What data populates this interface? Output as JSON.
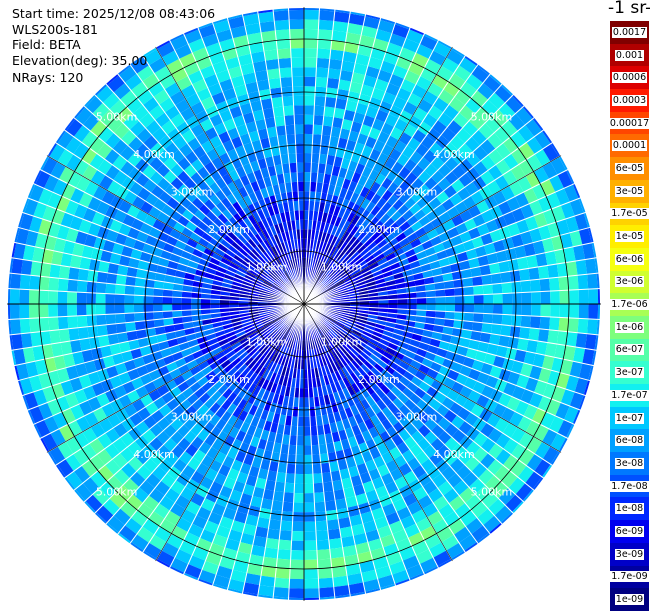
{
  "info": {
    "start_time": "Start time: 2025/12/08 08:43:06",
    "device": "WLS200s-181",
    "field": "Field: BETA",
    "elevation": "Elevation(deg): 35.00",
    "nrays": "NRays: 120"
  },
  "colorbar": {
    "title": "-1 sr-",
    "levels": [
      "0.0017",
      "0.001",
      "0.0006",
      "0.0003",
      "0.00017",
      "0.0001",
      "6e-05",
      "3e-05",
      "1.7e-05",
      "1e-05",
      "6e-06",
      "3e-06",
      "1.7e-06",
      "1e-06",
      "6e-07",
      "3e-07",
      "1.7e-07",
      "1e-07",
      "6e-08",
      "3e-08",
      "1.7e-08",
      "1e-08",
      "6e-09",
      "3e-09",
      "1.7e-09",
      "1e-09"
    ],
    "colors": [
      "#800000",
      "#b00000",
      "#dd0000",
      "#ff1a00",
      "#ff4600",
      "#ff6a00",
      "#ff8f00",
      "#ffb000",
      "#ffd200",
      "#ffee00",
      "#f5ff10",
      "#d0ff30",
      "#a8ff55",
      "#7dff7d",
      "#55ffa8",
      "#35ffd0",
      "#12f0f0",
      "#00c8ff",
      "#00a0ff",
      "#0078ff",
      "#0050ff",
      "#0028ff",
      "#0000f0",
      "#0000c8",
      "#0000a0",
      "#000080"
    ]
  },
  "chart_data": {
    "type": "heatmap",
    "projection": "polar-ppi",
    "field": "BETA",
    "n_rays": 120,
    "range_rings_km": [
      1,
      2,
      3,
      4,
      5
    ],
    "range_labels": [
      "1.00km",
      "2.00km",
      "3.00km",
      "4.00km",
      "5.00km"
    ],
    "max_range_km": 5.6,
    "value_profile_by_range_km": [
      {
        "range_km": 0.5,
        "beta": 3e-09
      },
      {
        "range_km": 1.5,
        "beta": 6e-09
      },
      {
        "range_km": 2.5,
        "beta": 3e-08
      },
      {
        "range_km": 3.5,
        "beta": 6e-08
      },
      {
        "range_km": 4.5,
        "beta": 1e-07
      },
      {
        "range_km": 5.0,
        "beta": 6e-07
      },
      {
        "range_km": 5.5,
        "beta": 3e-08
      }
    ],
    "colorscale": "jet",
    "color_range": [
      1e-09,
      0.0017
    ]
  }
}
